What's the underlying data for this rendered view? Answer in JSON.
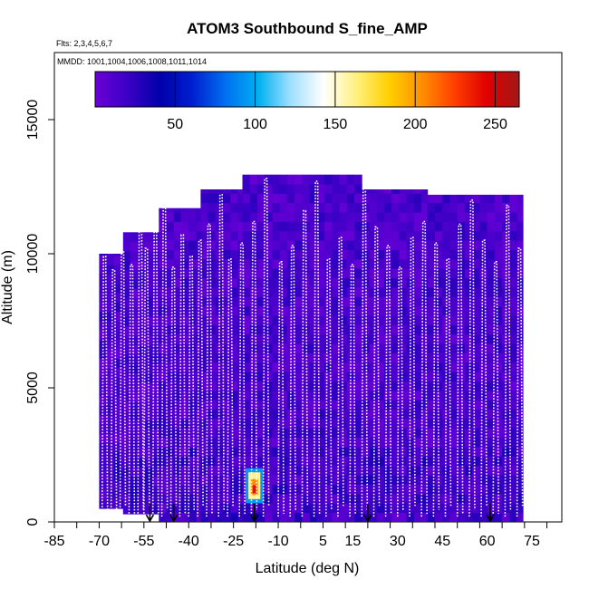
{
  "chart_data": {
    "type": "heatmap",
    "title": "ATOM3 Southbound S_fine_AMP",
    "subtitle_flights": "Flts: 2,3,4,5,6,7",
    "subtitle_dates": "MMDD: 1001,1004,1006,1008,1011,1014",
    "xlabel": "Latitude (deg N)",
    "ylabel": "Altitude (m)",
    "xlim": [
      -85,
      85
    ],
    "ylim": [
      0,
      17500
    ],
    "x_ticks": [
      -85,
      -70,
      -55,
      -40,
      -25,
      -10,
      5,
      15,
      30,
      45,
      60,
      75
    ],
    "x_tick_labels": [
      "-85",
      "-70",
      "-55",
      "-40",
      "-25",
      "-10",
      "5",
      "15",
      "30",
      "45",
      "60",
      "75"
    ],
    "y_ticks": [
      0,
      5000,
      10000,
      15000
    ],
    "y_tick_labels": [
      "0",
      "5000",
      "10000",
      "15000"
    ],
    "colorbar": {
      "range": [
        0,
        265
      ],
      "ticks": [
        50,
        100,
        150,
        200,
        250
      ],
      "tick_labels": [
        "50",
        "100",
        "150",
        "200",
        "250"
      ],
      "stops": [
        "#6a00d8",
        "#3b00c4",
        "#0000aa",
        "#0020d0",
        "#0070f0",
        "#00b0f0",
        "#a0e0ff",
        "#ffffff",
        "#fff080",
        "#ffd000",
        "#ff9000",
        "#ff4000",
        "#e00000",
        "#a01818"
      ]
    },
    "coverage": [
      {
        "lat": [
          -70,
          -62
        ],
        "alt": [
          500,
          10000
        ]
      },
      {
        "lat": [
          -62,
          -50
        ],
        "alt": [
          300,
          10800
        ]
      },
      {
        "lat": [
          -50,
          -36
        ],
        "alt": [
          0,
          11700
        ]
      },
      {
        "lat": [
          -36,
          -22
        ],
        "alt": [
          0,
          12400
        ]
      },
      {
        "lat": [
          -22,
          18
        ],
        "alt": [
          0,
          12950
        ]
      },
      {
        "lat": [
          18,
          40
        ],
        "alt": [
          0,
          12400
        ]
      },
      {
        "lat": [
          40,
          72
        ],
        "alt": [
          0,
          12200
        ]
      }
    ],
    "hotspot": {
      "lat": -18,
      "alt": 1150,
      "value": 240
    },
    "profile_lats": [
      -69,
      -66,
      -63,
      -60,
      -57,
      -55,
      -52,
      -49,
      -46,
      -43,
      -40,
      -37,
      -34,
      -30,
      -27,
      -23,
      -19,
      -15,
      -10,
      -6,
      -2,
      2,
      6,
      10,
      14,
      18,
      22,
      26,
      30,
      34,
      38,
      42,
      46,
      50,
      54,
      58,
      62,
      66,
      70
    ],
    "profile_tops": [
      9900,
      9400,
      10100,
      9600,
      11800,
      10200,
      11500,
      12000,
      9500,
      10700,
      9900,
      10500,
      11100,
      12200,
      9800,
      10400,
      11200,
      12800,
      9700,
      10300,
      11600,
      12700,
      9800,
      10600,
      9600,
      12600,
      11000,
      10300,
      9500,
      10600,
      11200,
      10400,
      9800,
      11100,
      12000,
      10500,
      9700,
      11800,
      10200
    ],
    "arrows_lat": [
      -53,
      -45,
      -18,
      20,
      61
    ]
  }
}
